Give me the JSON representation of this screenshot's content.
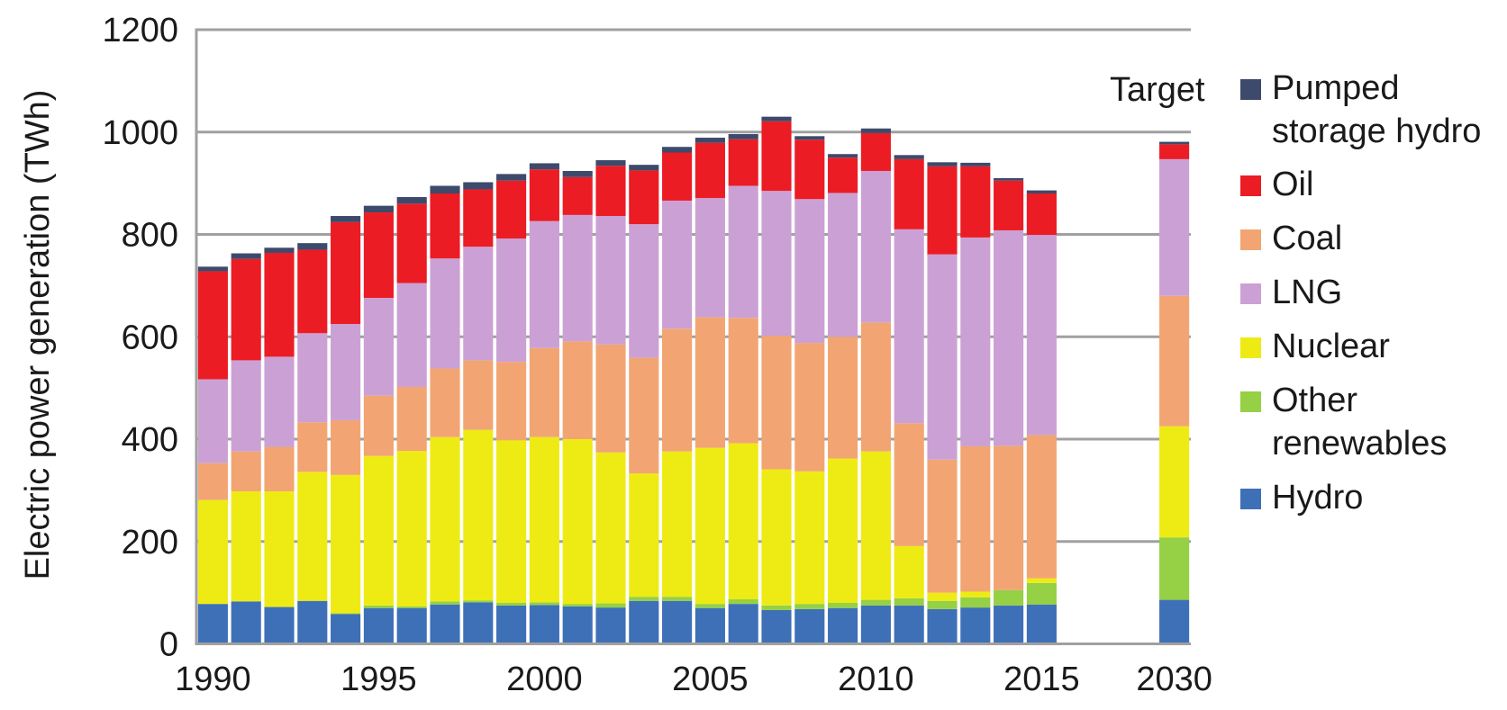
{
  "chart_data": {
    "type": "bar",
    "stacked": true,
    "title": "",
    "xlabel": "",
    "ylabel": "Electric power generation (TWh)",
    "ylim": [
      0,
      1200
    ],
    "yticks": [
      "0",
      "200",
      "400",
      "600",
      "800",
      "1000",
      "1200"
    ],
    "ytick_values": [
      0,
      200,
      400,
      600,
      800,
      1000,
      1200
    ],
    "grid": true,
    "legend_position": "right",
    "annotation": "Target",
    "categories": [
      "1990",
      "1991",
      "1992",
      "1993",
      "1994",
      "1995",
      "1996",
      "1997",
      "1998",
      "1999",
      "2000",
      "2001",
      "2002",
      "2003",
      "2004",
      "2005",
      "2006",
      "2007",
      "2008",
      "2009",
      "2010",
      "2011",
      "2012",
      "2013",
      "2014",
      "2015",
      "2030"
    ],
    "xtick_labels": [
      "1990",
      "1995",
      "2000",
      "2005",
      "2010",
      "2015",
      "2030"
    ],
    "series": [
      {
        "name": "Hydro",
        "color": "#3e70b8",
        "values": [
          78,
          83,
          72,
          84,
          58,
          70,
          70,
          77,
          81,
          75,
          76,
          73,
          71,
          84,
          84,
          70,
          78,
          66,
          68,
          70,
          75,
          75,
          68,
          71,
          75,
          77,
          86
        ]
      },
      {
        "name": "Other renewables",
        "color": "#95d045",
        "values": [
          0,
          0,
          0,
          0,
          2,
          5,
          3,
          6,
          4,
          5,
          5,
          5,
          8,
          8,
          8,
          8,
          9,
          9,
          10,
          10,
          11,
          14,
          16,
          20,
          30,
          42,
          122
        ]
      },
      {
        "name": "Nuclear",
        "color": "#eeeb14",
        "values": [
          203,
          215,
          226,
          252,
          270,
          292,
          304,
          321,
          333,
          318,
          323,
          322,
          295,
          241,
          284,
          305,
          305,
          266,
          259,
          282,
          290,
          102,
          16,
          11,
          0,
          9,
          217
        ]
      },
      {
        "name": "Coal",
        "color": "#f2a572",
        "values": [
          72,
          78,
          87,
          97,
          107,
          118,
          125,
          134,
          136,
          153,
          174,
          191,
          211,
          226,
          240,
          255,
          245,
          261,
          251,
          238,
          252,
          240,
          260,
          284,
          282,
          280,
          255
        ]
      },
      {
        "name": "LNG",
        "color": "#cba1d5",
        "values": [
          164,
          178,
          176,
          174,
          188,
          191,
          203,
          215,
          222,
          241,
          248,
          247,
          251,
          261,
          250,
          233,
          258,
          283,
          281,
          281,
          296,
          379,
          401,
          408,
          421,
          391,
          267
        ]
      },
      {
        "name": "Oil",
        "color": "#ec1c24",
        "values": [
          211,
          198,
          203,
          163,
          199,
          167,
          155,
          127,
          112,
          113,
          101,
          74,
          98,
          105,
          94,
          108,
          91,
          136,
          116,
          69,
          74,
          137,
          172,
          139,
          97,
          81,
          29
        ]
      },
      {
        "name": "Pumped storage hydro",
        "color": "#3d4a6b",
        "values": [
          9,
          11,
          10,
          13,
          12,
          13,
          13,
          15,
          14,
          13,
          12,
          12,
          11,
          11,
          11,
          10,
          10,
          9,
          7,
          7,
          9,
          8,
          8,
          7,
          5,
          6,
          5
        ]
      }
    ]
  },
  "legend": {
    "items": [
      {
        "label": "Pumped\nstorage hydro",
        "color": "#3d4a6b"
      },
      {
        "label": "Oil",
        "color": "#ec1c24"
      },
      {
        "label": "Coal",
        "color": "#f2a572"
      },
      {
        "label": "LNG",
        "color": "#cba1d5"
      },
      {
        "label": "Nuclear",
        "color": "#eeeb14"
      },
      {
        "label": "Other\nrenewables",
        "color": "#95d045"
      },
      {
        "label": "Hydro",
        "color": "#3e70b8"
      }
    ]
  },
  "colors": {
    "grid": "#a0a0a0",
    "axis": "#a0a0a0",
    "text": "#1a1a1a"
  }
}
